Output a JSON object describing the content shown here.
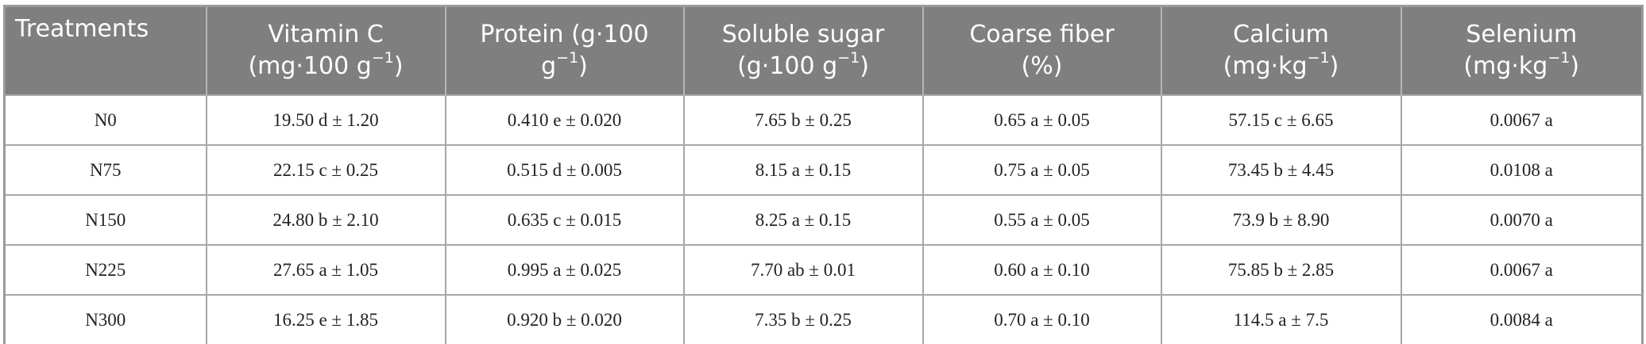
{
  "table": {
    "header": [
      [
        [
          {
            "text": "Treatments"
          }
        ]
      ],
      [
        [
          {
            "text": "Vitamin C"
          }
        ],
        [
          {
            "text": "(mg·100 g"
          },
          {
            "sup": "−1"
          },
          {
            "text": ")"
          }
        ]
      ],
      [
        [
          {
            "text": "Protein (g·100"
          }
        ],
        [
          {
            "text": "g"
          },
          {
            "sup": "−1"
          },
          {
            "text": ")"
          }
        ]
      ],
      [
        [
          {
            "text": "Soluble sugar"
          }
        ],
        [
          {
            "text": "(g·100 g"
          },
          {
            "sup": "−1"
          },
          {
            "text": ")"
          }
        ]
      ],
      [
        [
          {
            "text": "Coarse fiber"
          }
        ],
        [
          {
            "text": "(%)"
          }
        ]
      ],
      [
        [
          {
            "text": "Calcium"
          }
        ],
        [
          {
            "text": "(mg·kg"
          },
          {
            "sup": "−1"
          },
          {
            "text": ")"
          }
        ]
      ],
      [
        [
          {
            "text": "Selenium"
          }
        ],
        [
          {
            "text": "(mg·kg"
          },
          {
            "sup": "−1"
          },
          {
            "text": ")"
          }
        ]
      ]
    ],
    "rows": [
      [
        "N0",
        "19.50 d ± 1.20",
        "0.410 e ± 0.020",
        "7.65 b ± 0.25",
        "0.65 a ± 0.05",
        "57.15 c ± 6.65",
        "0.0067 a"
      ],
      [
        "N75",
        "22.15 c ± 0.25",
        "0.515 d ± 0.005",
        "8.15 a ± 0.15",
        "0.75 a ± 0.05",
        "73.45 b ± 4.45",
        "0.0108 a"
      ],
      [
        "N150",
        "24.80 b ± 2.10",
        "0.635 c ± 0.015",
        "8.25 a ± 0.15",
        "0.55 a ± 0.05",
        "73.9 b ± 8.90",
        "0.0070 a"
      ],
      [
        "N225",
        "27.65 a ± 1.05",
        "0.995 a ± 0.025",
        "7.70 ab ± 0.01",
        "0.60 a ± 0.10",
        "75.85 b ± 2.85",
        "0.0067 a"
      ],
      [
        "N300",
        "16.25 e ± 1.85",
        "0.920 b ± 0.020",
        "7.35 b ± 0.25",
        "0.70 a ± 0.10",
        "114.5 a ± 7.5",
        "0.0084 a"
      ]
    ]
  }
}
